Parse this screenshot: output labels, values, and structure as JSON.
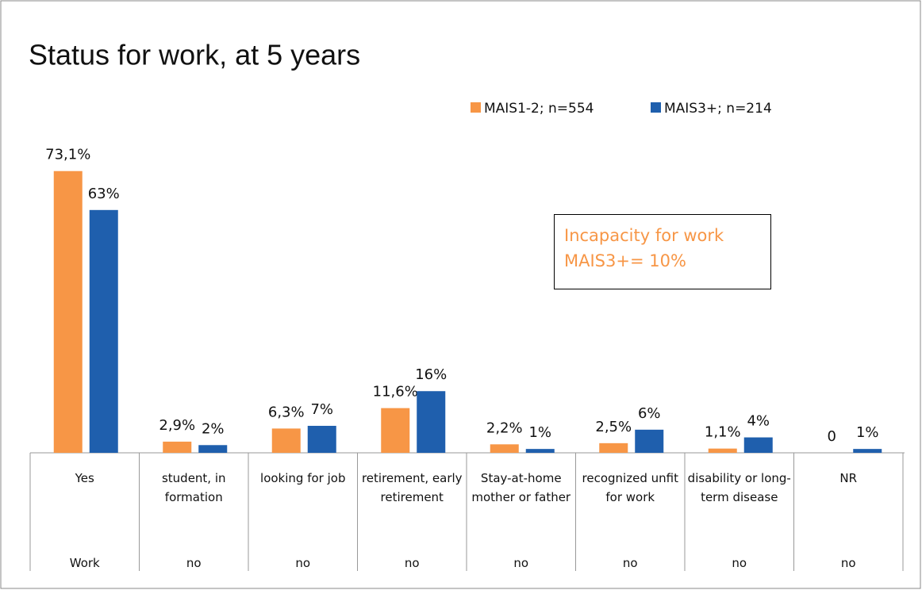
{
  "chart_data": {
    "type": "bar",
    "title": "Status for work, at 5 years",
    "categories": [
      "Yes",
      "student, in formation",
      "looking for job",
      "retirement, early retirement",
      "Stay-at-home mother or father",
      "recognized unfit for work",
      "disability or long-term disease",
      "NR"
    ],
    "groups": [
      "Work",
      "no",
      "no",
      "no",
      "no",
      "no",
      "no",
      "no"
    ],
    "series": [
      {
        "name": "MAIS1-2; n=554",
        "color": "#f79646",
        "values": [
          73.1,
          2.9,
          6.3,
          11.6,
          2.2,
          2.5,
          1.1,
          0
        ],
        "value_labels": [
          "73,1%",
          "2,9%",
          "6,3%",
          "11,6%",
          "2,2%",
          "2,5%",
          "1,1%",
          "0"
        ]
      },
      {
        "name": "MAIS3+; n=214",
        "color": "#1f5fad",
        "values": [
          63,
          2,
          7,
          16,
          1,
          6,
          4,
          1
        ],
        "value_labels": [
          "63%",
          "2%",
          "7%",
          "16%",
          "1%",
          "6%",
          "4%",
          "1%"
        ]
      }
    ],
    "annotation": "Incapacity for work MAIS3+= 10%",
    "legend": "top-right"
  }
}
